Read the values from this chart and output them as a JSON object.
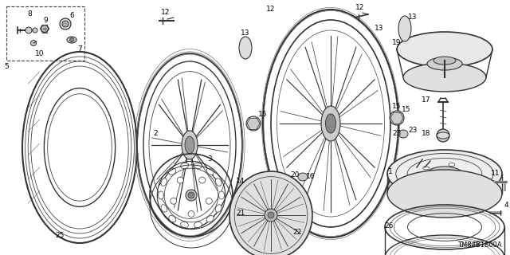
{
  "background_color": "#ffffff",
  "diagram_code": "TM84B1800A",
  "line_color": "#333333",
  "fig_width": 6.4,
  "fig_height": 3.2,
  "dpi": 100
}
